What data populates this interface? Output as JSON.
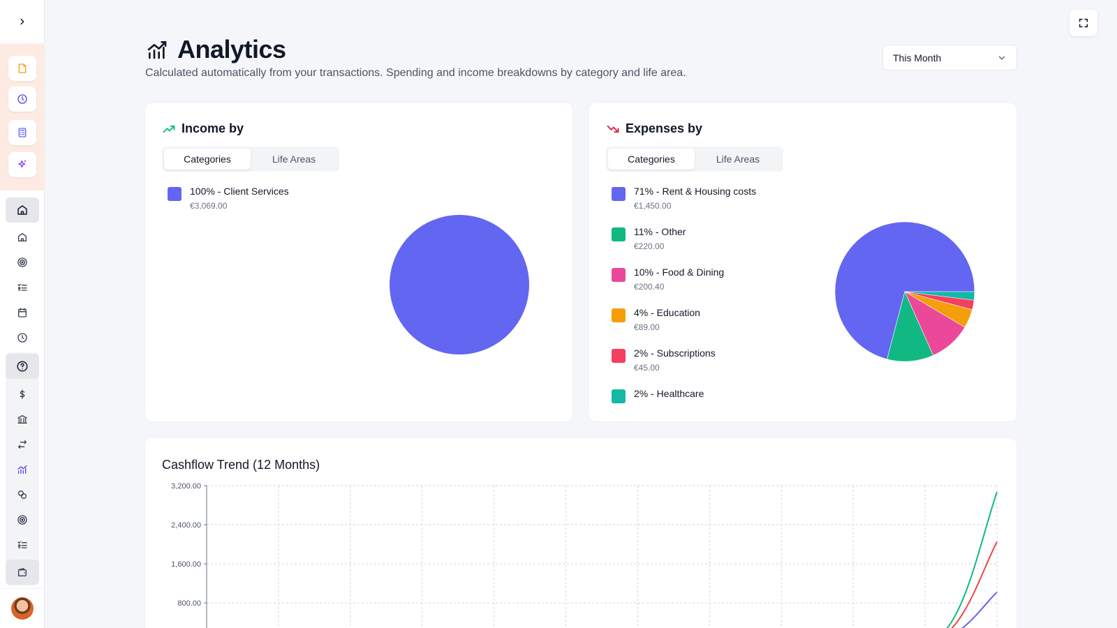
{
  "sidebar": {
    "quick_actions": [
      {
        "icon": "document-icon",
        "color": "#f59e0b"
      },
      {
        "icon": "clock-icon",
        "color": "#4f46e5"
      },
      {
        "icon": "calculator-icon",
        "color": "#6366f1"
      },
      {
        "icon": "sparkle-icon",
        "color": "#7c3aed"
      }
    ],
    "nav": [
      "home",
      "home",
      "target",
      "list-check",
      "calendar",
      "clock",
      "help",
      "dollar",
      "bank",
      "transfer",
      "chart",
      "coins",
      "target",
      "list-check",
      "wallet"
    ]
  },
  "header": {
    "title": "Analytics",
    "subtitle": "Calculated automatically from your transactions. Spending and income breakdowns by category and life area.",
    "period": "This Month"
  },
  "income_card": {
    "title": "Income by",
    "tabs": [
      "Categories",
      "Life Areas"
    ],
    "legend": [
      {
        "label": "100% - Client Services",
        "amount": "€3,069.00",
        "color": "#6366f1"
      }
    ]
  },
  "expenses_card": {
    "title": "Expenses by",
    "tabs": [
      "Categories",
      "Life Areas"
    ],
    "legend": [
      {
        "label": "71% - Rent & Housing costs",
        "amount": "€1,450.00",
        "color": "#6366f1"
      },
      {
        "label": "11% - Other",
        "amount": "€220.00",
        "color": "#10b981"
      },
      {
        "label": "10% - Food & Dining",
        "amount": "€200.40",
        "color": "#ec4899"
      },
      {
        "label": "4% - Education",
        "amount": "€89.00",
        "color": "#f59e0b"
      },
      {
        "label": "2% - Subscriptions",
        "amount": "€45.00",
        "color": "#f43f5e"
      },
      {
        "label": "2% - Healthcare",
        "amount": "",
        "color": "#14b8a6"
      }
    ]
  },
  "cashflow_card": {
    "title": "Cashflow Trend (12 Months)"
  },
  "chart_data": [
    {
      "type": "pie",
      "categories": [
        "Client Services"
      ],
      "values": [
        3069.0
      ],
      "colors": [
        "#6366f1"
      ]
    },
    {
      "type": "pie",
      "categories": [
        "Rent & Housing costs",
        "Other",
        "Food & Dining",
        "Education",
        "Subscriptions",
        "Healthcare"
      ],
      "values": [
        1450.0,
        220.0,
        200.4,
        89.0,
        45.0,
        40.0
      ],
      "colors": [
        "#6366f1",
        "#10b981",
        "#ec4899",
        "#f59e0b",
        "#f43f5e",
        "#14b8a6"
      ]
    },
    {
      "type": "line",
      "title": "Cashflow Trend (12 Months)",
      "x": [
        1,
        2,
        3,
        4,
        5,
        6,
        7,
        8,
        9,
        10,
        11,
        12
      ],
      "y_ticks": [
        "3,200.00",
        "2,400.00",
        "1,600.00",
        "800.00"
      ],
      "y_tick_values": [
        3200,
        2400,
        1600,
        800
      ],
      "ylim": [
        0,
        3200
      ],
      "grid": true,
      "series": [
        {
          "color": "#10b981",
          "values": [
            0,
            0,
            0,
            0,
            0,
            0,
            0,
            0,
            0,
            0,
            0,
            3069
          ]
        },
        {
          "color": "#ef4444",
          "values": [
            0,
            0,
            0,
            0,
            0,
            0,
            0,
            0,
            0,
            0,
            0,
            2050
          ]
        },
        {
          "color": "#6366f1",
          "values": [
            0,
            0,
            0,
            0,
            0,
            0,
            0,
            0,
            0,
            0,
            0,
            1020
          ]
        }
      ]
    }
  ]
}
